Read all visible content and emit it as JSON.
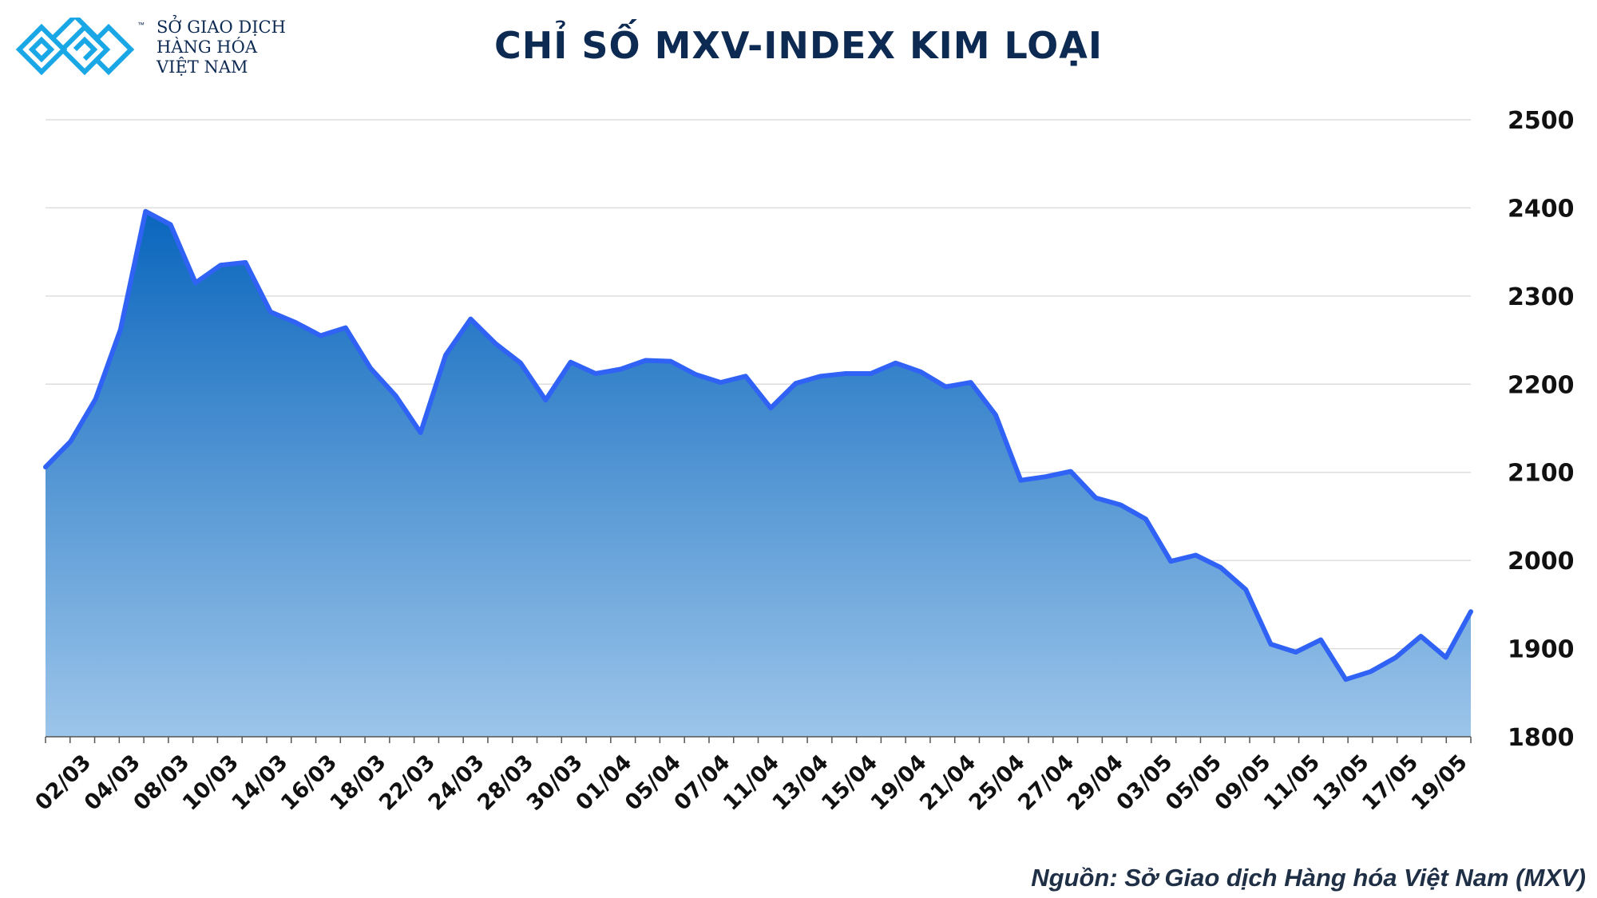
{
  "brand": {
    "name_line1": "SỞ GIAO DỊCH",
    "name_line2": "HÀNG HÓA",
    "name_line3": "VIỆT NAM",
    "trademark": "™",
    "logo_color": "#1aa7e6",
    "text_color": "#0d2a52"
  },
  "title": "CHỈ SỐ MXV-INDEX KIM LOẠI",
  "source": "Nguồn: Sở Giao dịch Hàng hóa Việt Nam (MXV)",
  "colors": {
    "line": "#2f62f5",
    "area_top": "#0a66bd",
    "area_bottom": "#9cc5ea",
    "grid": "#dddddd",
    "axis": "#555555"
  },
  "chart_data": {
    "type": "area",
    "title": "CHỈ SỐ MXV-INDEX KIM LOẠI",
    "xlabel": "",
    "ylabel": "",
    "ylim": [
      1800,
      2500
    ],
    "y_ticks": [
      1800,
      1900,
      2000,
      2100,
      2200,
      2300,
      2400,
      2500
    ],
    "y_axis_side": "right",
    "grid": true,
    "x_tick_labels": [
      "02/03",
      "04/03",
      "08/03",
      "10/03",
      "14/03",
      "16/03",
      "18/03",
      "22/03",
      "24/03",
      "28/03",
      "30/03",
      "01/04",
      "05/04",
      "07/04",
      "11/04",
      "13/04",
      "15/04",
      "19/04",
      "21/04",
      "25/04",
      "27/04",
      "29/04",
      "03/05",
      "05/05",
      "09/05",
      "11/05",
      "13/05",
      "17/05",
      "19/05"
    ],
    "values": [
      2106,
      2135,
      2183,
      2262,
      2396,
      2381,
      2315,
      2335,
      2338,
      2282,
      2270,
      2255,
      2264,
      2218,
      2187,
      2145,
      2233,
      2274,
      2246,
      2224,
      2182,
      2225,
      2212,
      2217,
      2227,
      2226,
      2211,
      2202,
      2209,
      2173,
      2201,
      2209,
      2212,
      2212,
      2224,
      2214,
      2197,
      2202,
      2165,
      2091,
      2095,
      2101,
      2071,
      2063,
      2047,
      1999,
      2006,
      1992,
      1967,
      1905,
      1896,
      1910,
      1865,
      1874,
      1890,
      1914,
      1890,
      1942
    ]
  }
}
